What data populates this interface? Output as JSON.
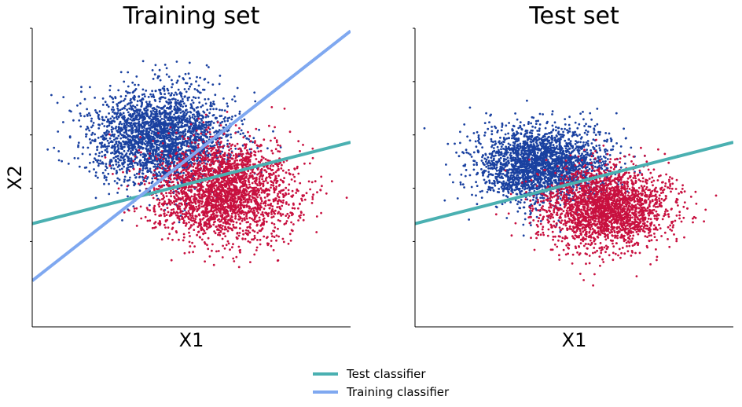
{
  "chart_data": [
    {
      "type": "scatter",
      "title": "Training set",
      "xlabel": "X1",
      "ylabel": "X2",
      "xlim": [
        -5,
        5
      ],
      "ylim": [
        -5,
        6
      ],
      "grid": false,
      "tick_labels_shown": false,
      "series": [
        {
          "color": "#1a41a0",
          "center": [
            -1.0,
            2.0
          ],
          "spread": [
            1.1,
            0.9
          ],
          "count": 2600
        },
        {
          "color": "#c8103f",
          "center": [
            1.0,
            0.0
          ],
          "spread": [
            1.1,
            0.9
          ],
          "count": 2600
        }
      ],
      "lines": [
        {
          "name": "Test classifier",
          "color": "#4ab0b1",
          "x": [
            -5,
            5
          ],
          "y": [
            -1.2,
            1.8
          ]
        },
        {
          "name": "Training classifier",
          "color": "#7fa8f0",
          "x": [
            -5,
            5
          ],
          "y": [
            -3.3,
            5.9
          ]
        }
      ]
    },
    {
      "type": "scatter",
      "title": "Test set",
      "xlabel": "X1",
      "ylabel": "",
      "xlim": [
        -5,
        5
      ],
      "ylim": [
        -5,
        6
      ],
      "grid": false,
      "tick_labels_shown": false,
      "series": [
        {
          "color": "#1a41a0",
          "center": [
            -1.0,
            1.0
          ],
          "spread": [
            1.0,
            0.7
          ],
          "count": 2400
        },
        {
          "color": "#c8103f",
          "center": [
            1.0,
            -0.6
          ],
          "spread": [
            1.0,
            0.75
          ],
          "count": 2400
        }
      ],
      "lines": [
        {
          "name": "Test classifier",
          "color": "#4ab0b1",
          "x": [
            -5,
            5
          ],
          "y": [
            -1.2,
            1.8
          ]
        }
      ]
    }
  ],
  "legend": {
    "position": "bottom-center",
    "items": [
      {
        "label": "Test classifier",
        "color": "#4ab0b1"
      },
      {
        "label": "Training classifier",
        "color": "#7fa8f0"
      }
    ]
  }
}
